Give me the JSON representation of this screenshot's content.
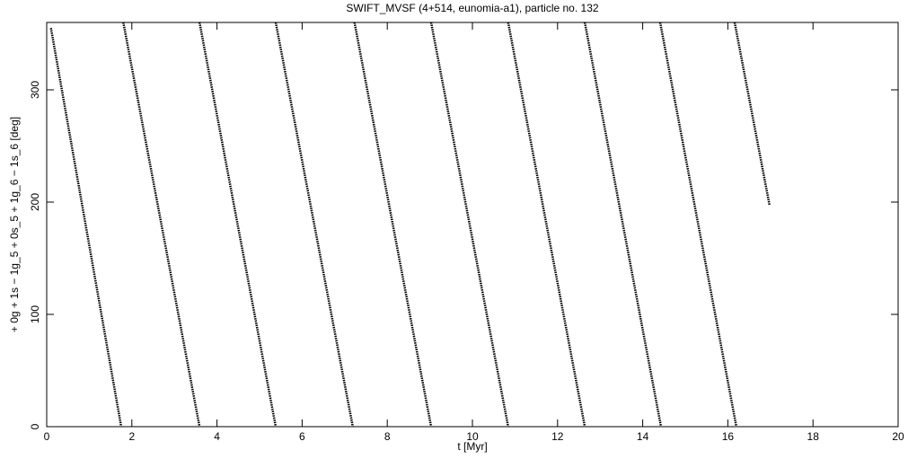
{
  "chart_data": {
    "type": "line",
    "title": "SWIFT_MVSF (4+514, eunomia-a1), particle no. 132",
    "x_label": "t [Myr]",
    "y_label": "+ 0g + 1s − 1g_5 + 0s_5 + 1g_6 − 1s_6 [deg]",
    "x": [
      0.1,
      1.75,
      null,
      1.8,
      3.59,
      null,
      3.59,
      5.38,
      null,
      5.38,
      7.19,
      null,
      7.23,
      9.03,
      null,
      9.03,
      10.84,
      null,
      10.84,
      12.64,
      null,
      12.64,
      14.43,
      null,
      14.41,
      16.2,
      null,
      16.16,
      16.98
    ],
    "values": [
      355,
      0,
      null,
      360,
      0,
      null,
      360,
      0,
      null,
      360,
      0,
      null,
      360,
      0,
      null,
      360,
      0,
      null,
      360,
      0,
      null,
      360,
      0,
      null,
      360,
      0,
      null,
      360,
      197
    ],
    "color": "#000000",
    "xlim": [
      0,
      20
    ],
    "xticks": [
      0,
      2,
      4,
      6,
      8,
      10,
      12,
      14,
      16,
      18,
      20
    ],
    "ylim": [
      0,
      360
    ],
    "yticks": [
      0,
      100,
      200,
      300
    ]
  }
}
